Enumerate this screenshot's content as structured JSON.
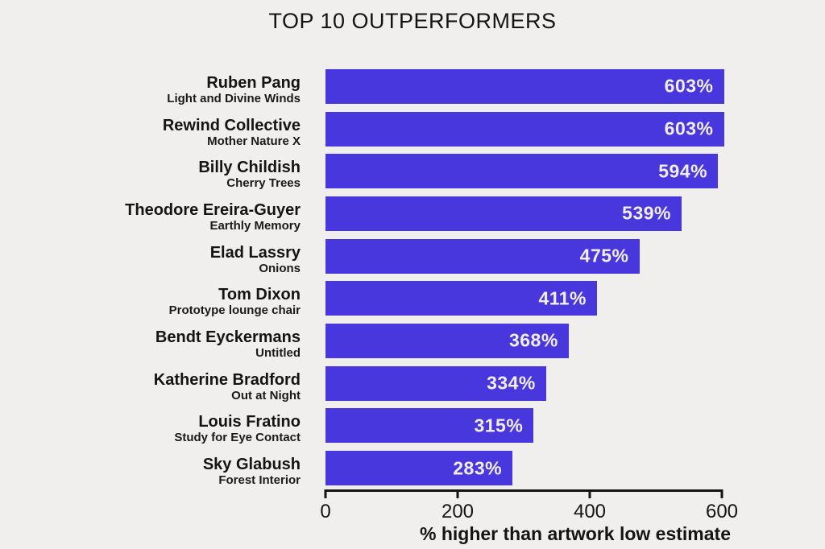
{
  "title": "TOP 10 OUTPERFORMERS",
  "colors": {
    "background": "#f0efee",
    "bar": "#4737dc",
    "value_label": "#f2eee7",
    "text": "#141414"
  },
  "chart_data": {
    "type": "bar",
    "orientation": "horizontal",
    "title": "TOP 10 OUTPERFORMERS",
    "xlabel": "% higher than artwork low estimate",
    "xlim": [
      0,
      600
    ],
    "xticks": [
      "0",
      "200",
      "400",
      "600"
    ],
    "grid": false,
    "legend": "none",
    "categories": [
      {
        "artist": "Ruben Pang",
        "artwork": "Light and Divine Winds",
        "value": 603,
        "value_label": "603%"
      },
      {
        "artist": "Rewind Collective",
        "artwork": "Mother Nature X",
        "value": 603,
        "value_label": "603%"
      },
      {
        "artist": "Billy Childish",
        "artwork": "Cherry Trees",
        "value": 594,
        "value_label": "594%"
      },
      {
        "artist": "Theodore Ereira-Guyer",
        "artwork": "Earthly Memory",
        "value": 539,
        "value_label": "539%"
      },
      {
        "artist": "Elad Lassry",
        "artwork": "Onions",
        "value": 475,
        "value_label": "475%"
      },
      {
        "artist": "Tom Dixon",
        "artwork": "Prototype lounge chair",
        "value": 411,
        "value_label": "411%"
      },
      {
        "artist": "Bendt Eyckermans",
        "artwork": "Untitled",
        "value": 368,
        "value_label": "368%"
      },
      {
        "artist": "Katherine Bradford",
        "artwork": "Out at Night",
        "value": 334,
        "value_label": "334%"
      },
      {
        "artist": "Louis Fratino",
        "artwork": "Study for Eye Contact",
        "value": 315,
        "value_label": "315%"
      },
      {
        "artist": "Sky Glabush",
        "artwork": "Forest Interior",
        "value": 283,
        "value_label": "283%"
      }
    ]
  }
}
